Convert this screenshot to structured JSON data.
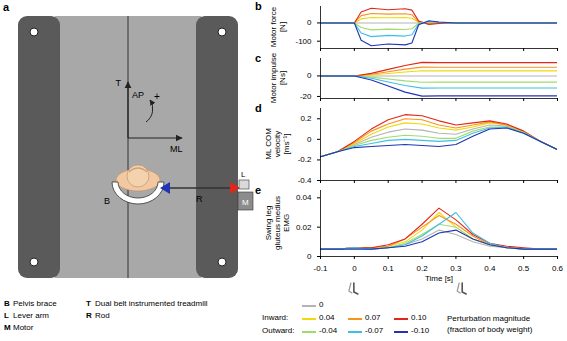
{
  "diagram": {
    "panel": "a",
    "axis_labels": {
      "t": "T",
      "ap": "AP",
      "ml": "ML",
      "rotation": "+"
    },
    "parts": [
      {
        "code": "B",
        "label": "Pelvis brace"
      },
      {
        "code": "L",
        "label": "Lever arm"
      },
      {
        "code": "M",
        "label": "Motor"
      },
      {
        "code": "T",
        "label": "Dual belt instrumented treadmill"
      },
      {
        "code": "R",
        "label": "Rod"
      }
    ]
  },
  "key": {
    "title": "Perturbation magnitude\n(fraction of body weight)",
    "rows": [
      {
        "label": null,
        "items": [
          "0"
        ]
      },
      {
        "label": "Inward:",
        "items": [
          "0.04",
          "0.07",
          "0.10"
        ]
      },
      {
        "label": "Outward:",
        "items": [
          "-0.04",
          "-0.07",
          "-0.10"
        ]
      }
    ]
  },
  "chart_data": [
    {
      "panel": "b",
      "type": "line",
      "ylabel": "Motor force\n[N]",
      "tick_labels": "y",
      "x": [
        -0.1,
        0,
        0.02,
        0.05,
        0.1,
        0.15,
        0.17,
        0.19,
        0.22,
        0.25,
        0.3,
        0.4,
        0.5,
        0.6
      ],
      "xlim": [
        -0.1,
        0.6
      ],
      "xticks": [
        -0.1,
        0,
        0.1,
        0.2,
        0.3,
        0.4,
        0.5,
        0.6
      ],
      "ylim": [
        -140,
        90
      ],
      "yticks": [
        -100,
        0
      ],
      "series": [
        {
          "name": "0",
          "color": "#b3b3b3",
          "values": [
            0,
            0,
            0,
            0,
            0,
            0,
            0,
            0,
            0,
            0,
            0,
            0,
            0,
            0
          ]
        },
        {
          "name": "0.04",
          "color": "#f2d90f",
          "values": [
            0,
            0,
            22,
            30,
            28,
            30,
            26,
            3,
            -3,
            -1,
            0,
            0,
            0,
            0
          ]
        },
        {
          "name": "0.07",
          "color": "#f7941d",
          "values": [
            0,
            0,
            40,
            52,
            48,
            50,
            45,
            5,
            -5,
            -2,
            0,
            0,
            0,
            0
          ]
        },
        {
          "name": "0.10",
          "color": "#e3261b",
          "values": [
            0,
            0,
            60,
            80,
            72,
            78,
            70,
            10,
            -8,
            -3,
            0,
            0,
            0,
            0
          ]
        },
        {
          "name": "-0.04",
          "color": "#9fdc6e",
          "values": [
            0,
            0,
            -25,
            -38,
            -34,
            -36,
            -32,
            -2,
            4,
            2,
            0,
            0,
            0,
            0
          ]
        },
        {
          "name": "-0.07",
          "color": "#3fbfe6",
          "values": [
            0,
            0,
            -55,
            -75,
            -68,
            -72,
            -65,
            -5,
            8,
            3,
            0,
            0,
            0,
            0
          ]
        },
        {
          "name": "-0.10",
          "color": "#1f35b5",
          "values": [
            0,
            0,
            -95,
            -125,
            -115,
            -120,
            -110,
            -10,
            12,
            5,
            0,
            0,
            0,
            0
          ]
        }
      ]
    },
    {
      "panel": "c",
      "type": "line",
      "ylabel": "Motor impulse\n[Ns]",
      "tick_labels": "y",
      "x": [
        -0.1,
        0,
        0.05,
        0.1,
        0.15,
        0.2,
        0.25,
        0.3,
        0.4,
        0.5,
        0.6
      ],
      "xlim": [
        -0.1,
        0.6
      ],
      "xticks": [
        -0.1,
        0,
        0.1,
        0.2,
        0.3,
        0.4,
        0.5,
        0.6
      ],
      "ylim": [
        -22,
        17
      ],
      "yticks": [
        -20,
        0
      ],
      "series": [
        {
          "name": "0",
          "color": "#b3b3b3",
          "values": [
            0,
            0,
            0,
            0,
            0,
            0,
            0,
            0,
            0,
            0,
            0
          ]
        },
        {
          "name": "0.04",
          "color": "#f2d90f",
          "values": [
            0,
            0,
            0.9,
            2.4,
            3.8,
            5,
            4.9,
            4.9,
            4.9,
            4.9,
            4.9
          ]
        },
        {
          "name": "0.07",
          "color": "#f7941d",
          "values": [
            0,
            0,
            1.6,
            4.1,
            6.6,
            8.6,
            8.5,
            8.5,
            8.5,
            8.5,
            8.5
          ]
        },
        {
          "name": "0.10",
          "color": "#e3261b",
          "values": [
            0,
            0,
            2.5,
            6.4,
            10.1,
            13.2,
            13,
            13,
            13,
            13,
            13
          ]
        },
        {
          "name": "-0.04",
          "color": "#9fdc6e",
          "values": [
            0,
            0,
            -1.2,
            -3,
            -4.8,
            -6.1,
            -6,
            -6,
            -6,
            -6,
            -6
          ]
        },
        {
          "name": "-0.07",
          "color": "#3fbfe6",
          "values": [
            0,
            0,
            -2.3,
            -5.9,
            -9.4,
            -11.9,
            -11.7,
            -11.7,
            -11.7,
            -11.7,
            -11.7
          ]
        },
        {
          "name": "-0.10",
          "color": "#1f35b5",
          "values": [
            0,
            0,
            -3.9,
            -9.9,
            -15.8,
            -19.7,
            -19.4,
            -19.4,
            -19.4,
            -19.4,
            -19.4
          ]
        }
      ]
    },
    {
      "panel": "d",
      "type": "line",
      "ylabel": "ML COM\nvelocity\n[ms⁻¹]",
      "tick_labels": "y",
      "x": [
        -0.1,
        -0.05,
        0,
        0.05,
        0.1,
        0.15,
        0.2,
        0.25,
        0.3,
        0.35,
        0.4,
        0.45,
        0.5,
        0.55,
        0.6
      ],
      "xlim": [
        -0.1,
        0.6
      ],
      "xticks": [
        -0.1,
        0,
        0.1,
        0.2,
        0.3,
        0.4,
        0.5,
        0.6
      ],
      "ylim": [
        -0.4,
        0.3
      ],
      "yticks": [
        -0.4,
        -0.2,
        0,
        0.2
      ],
      "series": [
        {
          "name": "0",
          "color": "#b3b3b3",
          "values": [
            -0.17,
            -0.12,
            -0.05,
            0.02,
            0.07,
            0.1,
            0.09,
            0.06,
            0.05,
            0.1,
            0.14,
            0.13,
            0.07,
            -0.02,
            -0.1
          ]
        },
        {
          "name": "0.04",
          "color": "#f2d90f",
          "values": [
            -0.17,
            -0.12,
            -0.04,
            0.05,
            0.12,
            0.16,
            0.15,
            0.11,
            0.09,
            0.12,
            0.16,
            0.14,
            0.07,
            -0.02,
            -0.1
          ]
        },
        {
          "name": "0.07",
          "color": "#f7941d",
          "values": [
            -0.17,
            -0.12,
            -0.03,
            0.08,
            0.15,
            0.2,
            0.19,
            0.14,
            0.11,
            0.14,
            0.17,
            0.14,
            0.08,
            -0.02,
            -0.1
          ]
        },
        {
          "name": "0.10",
          "color": "#e3261b",
          "values": [
            -0.17,
            -0.12,
            -0.02,
            0.1,
            0.19,
            0.24,
            0.23,
            0.18,
            0.14,
            0.16,
            0.18,
            0.15,
            0.08,
            -0.02,
            -0.1
          ]
        },
        {
          "name": "-0.04",
          "color": "#9fdc6e",
          "values": [
            -0.17,
            -0.12,
            -0.06,
            -0.01,
            0.02,
            0.04,
            0.03,
            0.01,
            0.01,
            0.08,
            0.12,
            0.12,
            0.07,
            -0.02,
            -0.1
          ]
        },
        {
          "name": "-0.07",
          "color": "#3fbfe6",
          "values": [
            -0.17,
            -0.12,
            -0.07,
            -0.04,
            -0.01,
            0,
            -0.01,
            -0.02,
            -0.01,
            0.06,
            0.11,
            0.12,
            0.06,
            -0.02,
            -0.1
          ]
        },
        {
          "name": "-0.10",
          "color": "#1f35b5",
          "values": [
            -0.17,
            -0.12,
            -0.08,
            -0.07,
            -0.06,
            -0.05,
            -0.06,
            -0.07,
            -0.05,
            0.03,
            0.1,
            0.11,
            0.06,
            -0.02,
            -0.1
          ]
        }
      ]
    },
    {
      "panel": "e",
      "type": "line",
      "ylabel": "Swing leg\ngluteus medius\nEMG",
      "xlabel": "Time [s]",
      "events_x": [
        0,
        0.32
      ],
      "x": [
        -0.1,
        -0.05,
        0,
        0.05,
        0.1,
        0.15,
        0.2,
        0.25,
        0.3,
        0.35,
        0.4,
        0.45,
        0.5,
        0.55,
        0.6
      ],
      "xlim": [
        -0.1,
        0.6
      ],
      "xticks": [
        -0.1,
        0,
        0.1,
        0.2,
        0.3,
        0.4,
        0.5,
        0.6
      ],
      "ylim": [
        0,
        0.045
      ],
      "yticks": [
        0,
        0.02,
        0.04
      ],
      "series": [
        {
          "name": "0",
          "color": "#b3b3b3",
          "values": [
            0.005,
            0.005,
            0.006,
            0.005,
            0.006,
            0.008,
            0.012,
            0.018,
            0.015,
            0.01,
            0.007,
            0.006,
            0.005,
            0.005,
            0.005
          ]
        },
        {
          "name": "0.04",
          "color": "#f2d90f",
          "values": [
            0.005,
            0.005,
            0.006,
            0.006,
            0.007,
            0.01,
            0.018,
            0.03,
            0.02,
            0.012,
            0.008,
            0.006,
            0.005,
            0.005,
            0.005
          ]
        },
        {
          "name": "0.07",
          "color": "#f7941d",
          "values": [
            0.005,
            0.005,
            0.006,
            0.006,
            0.007,
            0.012,
            0.02,
            0.028,
            0.022,
            0.014,
            0.008,
            0.006,
            0.005,
            0.005,
            0.005
          ]
        },
        {
          "name": "0.10",
          "color": "#e3261b",
          "values": [
            0.005,
            0.005,
            0.006,
            0.006,
            0.008,
            0.012,
            0.022,
            0.033,
            0.025,
            0.015,
            0.009,
            0.007,
            0.006,
            0.005,
            0.005
          ]
        },
        {
          "name": "-0.04",
          "color": "#9fdc6e",
          "values": [
            0.005,
            0.005,
            0.006,
            0.005,
            0.006,
            0.009,
            0.015,
            0.022,
            0.02,
            0.012,
            0.008,
            0.006,
            0.005,
            0.005,
            0.005
          ]
        },
        {
          "name": "-0.07",
          "color": "#3fbfe6",
          "values": [
            0.005,
            0.005,
            0.006,
            0.005,
            0.006,
            0.008,
            0.014,
            0.022,
            0.03,
            0.016,
            0.009,
            0.006,
            0.005,
            0.005,
            0.005
          ]
        },
        {
          "name": "-0.10",
          "color": "#1f35b5",
          "values": [
            0.005,
            0.005,
            0.005,
            0.005,
            0.006,
            0.007,
            0.01,
            0.016,
            0.018,
            0.012,
            0.008,
            0.006,
            0.005,
            0.005,
            0.005
          ]
        }
      ]
    }
  ]
}
